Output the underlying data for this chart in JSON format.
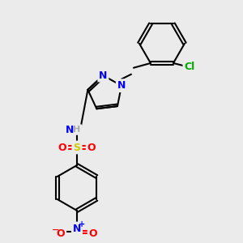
{
  "background_color": "#ebebeb",
  "atom_colors": {
    "N": "#0000ff",
    "O": "#ff0000",
    "S": "#cccc00",
    "Cl": "#00aa00",
    "C": "#000000",
    "H": "#aaaaaa"
  },
  "bond_color": "#000000",
  "fig_size": [
    3.0,
    3.0
  ],
  "dpi": 100
}
